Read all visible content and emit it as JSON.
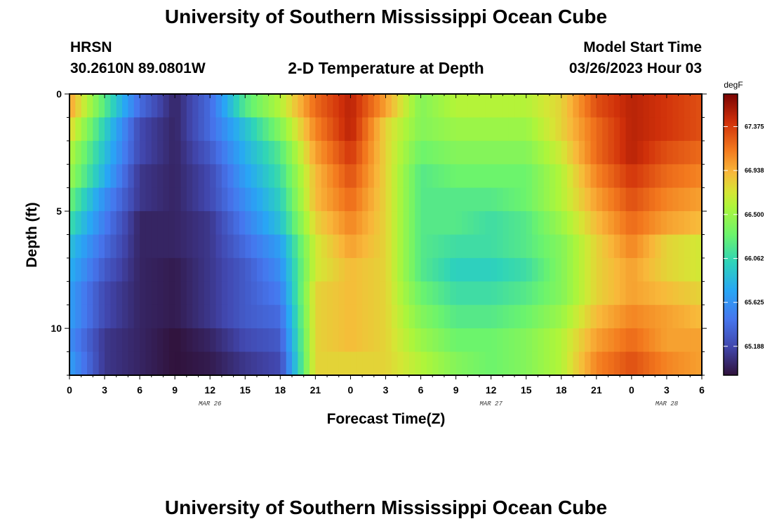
{
  "page": {
    "title": "University of Southern Mississippi Ocean Cube",
    "footer_title": "University of Southern Mississippi Ocean Cube",
    "station": "HRSN",
    "coords": "30.2610N  89.0801W",
    "plot_title": "2-D Temperature at Depth",
    "model_start_label": "Model Start Time",
    "model_start_value": "03/26/2023 Hour 03"
  },
  "chart_data": {
    "type": "heatmap",
    "title": "2-D Temperature at Depth",
    "xlabel": "Forecast Time(Z)",
    "ylabel": "Depth (ft)",
    "x_hours": [
      0,
      54
    ],
    "x_tick_hours": [
      0,
      3,
      6,
      9,
      12,
      15,
      18,
      21,
      24,
      27,
      30,
      33,
      36,
      39,
      42,
      45,
      48,
      51,
      54
    ],
    "x_tick_labels": [
      "0",
      "3",
      "6",
      "9",
      "12",
      "15",
      "18",
      "21",
      "0",
      "3",
      "6",
      "9",
      "12",
      "15",
      "18",
      "21",
      "0",
      "3",
      "6"
    ],
    "date_labels": [
      {
        "hour": 12,
        "label": "MAR 26"
      },
      {
        "hour": 36,
        "label": "MAR 27"
      },
      {
        "hour": 51,
        "label": "MAR 28"
      }
    ],
    "ylim": [
      0,
      12
    ],
    "y_ticks": [
      0,
      5,
      10
    ],
    "y_tick_labels": [
      "0",
      "5",
      "10"
    ],
    "colorbar": {
      "unit": "degF",
      "range": [
        64.9,
        67.7
      ],
      "ticks": [
        65.188,
        65.625,
        66.062,
        66.5,
        66.938,
        67.375
      ],
      "tick_labels": [
        "65.188",
        "65.625",
        "66.062",
        "66.500",
        "66.938",
        "67.375"
      ]
    },
    "depth_levels": [
      0.5,
      1.5,
      2.5,
      3.5,
      4.5,
      5.5,
      6.5,
      7.5,
      8.5,
      9.5,
      10.5,
      11.5
    ],
    "time_hours": [
      0,
      3,
      6,
      9,
      12,
      15,
      18,
      21,
      24,
      27,
      30,
      33,
      36,
      39,
      42,
      45,
      48,
      51,
      54
    ],
    "values": [
      [
        67.0,
        66.2,
        65.4,
        65.0,
        65.4,
        66.2,
        66.6,
        67.2,
        67.5,
        67.0,
        66.4,
        66.6,
        66.6,
        66.6,
        66.8,
        67.3,
        67.5,
        67.4,
        67.3
      ],
      [
        66.8,
        66.0,
        65.2,
        65.0,
        65.4,
        65.9,
        66.4,
        67.1,
        67.5,
        66.8,
        66.4,
        66.5,
        66.5,
        66.5,
        66.8,
        67.2,
        67.5,
        67.4,
        67.3
      ],
      [
        66.6,
        65.9,
        65.2,
        65.0,
        65.3,
        65.8,
        66.2,
        67.0,
        67.4,
        66.8,
        66.3,
        66.4,
        66.4,
        66.4,
        66.7,
        67.2,
        67.5,
        67.3,
        67.2
      ],
      [
        66.5,
        65.8,
        65.1,
        65.0,
        65.2,
        65.7,
        66.1,
        66.9,
        67.3,
        66.8,
        66.2,
        66.3,
        66.3,
        66.3,
        66.6,
        67.1,
        67.4,
        67.2,
        67.1
      ],
      [
        66.3,
        65.6,
        65.1,
        65.0,
        65.2,
        65.6,
        66.0,
        66.9,
        67.2,
        66.8,
        66.2,
        66.2,
        66.2,
        66.3,
        66.6,
        67.0,
        67.3,
        67.1,
        67.0
      ],
      [
        66.1,
        65.5,
        65.0,
        65.0,
        65.1,
        65.5,
        65.9,
        66.8,
        67.1,
        66.8,
        66.2,
        66.2,
        66.1,
        66.2,
        66.5,
        66.9,
        67.2,
        67.0,
        66.9
      ],
      [
        65.9,
        65.4,
        65.0,
        65.0,
        65.1,
        65.4,
        65.7,
        66.7,
        67.0,
        66.8,
        66.2,
        66.1,
        66.1,
        66.2,
        66.4,
        66.8,
        67.1,
        66.8,
        66.7
      ],
      [
        65.8,
        65.3,
        65.0,
        64.95,
        65.1,
        65.3,
        65.6,
        66.7,
        66.9,
        66.8,
        66.2,
        66.0,
        66.0,
        66.1,
        66.4,
        66.8,
        67.0,
        66.8,
        66.7
      ],
      [
        65.7,
        65.2,
        65.0,
        64.95,
        65.1,
        65.3,
        65.5,
        66.8,
        66.9,
        66.8,
        66.3,
        66.1,
        66.1,
        66.2,
        66.4,
        66.8,
        67.0,
        66.9,
        66.8
      ],
      [
        65.7,
        65.2,
        65.0,
        64.95,
        65.1,
        65.3,
        65.4,
        66.8,
        66.9,
        66.8,
        66.4,
        66.2,
        66.2,
        66.3,
        66.5,
        66.9,
        67.1,
        67.0,
        66.9
      ],
      [
        65.6,
        65.1,
        65.0,
        64.9,
        65.0,
        65.2,
        65.3,
        66.8,
        66.9,
        66.8,
        66.5,
        66.3,
        66.3,
        66.4,
        66.6,
        67.0,
        67.2,
        67.0,
        67.0
      ],
      [
        65.7,
        65.1,
        65.0,
        64.9,
        64.95,
        65.1,
        65.2,
        66.8,
        66.8,
        66.8,
        66.6,
        66.4,
        66.3,
        66.4,
        66.6,
        67.1,
        67.3,
        67.1,
        67.0
      ]
    ]
  }
}
